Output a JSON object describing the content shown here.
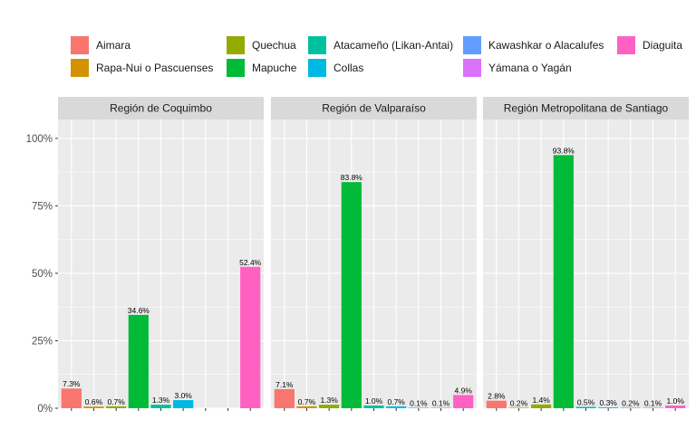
{
  "chart_data": {
    "type": "bar",
    "ylim": [
      0,
      1.07
    ],
    "y_ticks": [
      {
        "value": 0,
        "label": "0%"
      },
      {
        "value": 0.25,
        "label": "25%"
      },
      {
        "value": 0.5,
        "label": "50%"
      },
      {
        "value": 0.75,
        "label": "75%"
      },
      {
        "value": 1.0,
        "label": "100%"
      }
    ],
    "xlabel": "",
    "ylabel": "",
    "grid": true,
    "legend_position": "top",
    "categories": [
      "Aimara",
      "Rapa-Nui o Pascuenses",
      "Quechua",
      "Mapuche",
      "Atacameño (Likan-Antai)",
      "Collas",
      "Kawashkar o Alacalufes",
      "Yámana o Yagán",
      "Diaguita"
    ],
    "legend": [
      {
        "name": "Aimara",
        "color": "#F8766D"
      },
      {
        "name": "Rapa-Nui o Pascuenses",
        "color": "#D39200"
      },
      {
        "name": "Quechua",
        "color": "#93AA00"
      },
      {
        "name": "Mapuche",
        "color": "#00BA38"
      },
      {
        "name": "Atacameño (Likan-Antai)",
        "color": "#00C19F"
      },
      {
        "name": "Collas",
        "color": "#00B9E3"
      },
      {
        "name": "Kawashkar o Alacalufes",
        "color": "#619CFF"
      },
      {
        "name": "Yámana o Yagán",
        "color": "#DB72FB"
      },
      {
        "name": "Diaguita",
        "color": "#FF61C3"
      }
    ],
    "panels": [
      {
        "title": "Región de Coquimbo",
        "values": [
          0.073,
          0.006,
          0.007,
          0.346,
          0.013,
          0.03,
          null,
          null,
          0.524
        ],
        "labels": [
          "7.3%",
          "0.6%",
          "0.7%",
          "34.6%",
          "1.3%",
          "3.0%",
          null,
          null,
          "52.4%"
        ]
      },
      {
        "title": "Región de Valparaíso",
        "values": [
          0.071,
          0.007,
          0.013,
          0.838,
          0.01,
          0.007,
          0.001,
          0.001,
          0.049
        ],
        "labels": [
          "7.1%",
          "0.7%",
          "1.3%",
          "83.8%",
          "1.0%",
          "0.7%",
          "0.1%",
          "0.1%",
          "4.9%"
        ]
      },
      {
        "title": "Región Metropolitana de Santiago",
        "values": [
          0.028,
          0.002,
          0.014,
          0.938,
          0.005,
          0.003,
          0.002,
          0.001,
          0.01
        ],
        "labels": [
          "2.8%",
          "0.2%",
          "1.4%",
          "93.8%",
          "0.5%",
          "0.3%",
          "0.2%",
          "0.1%",
          "1.0%"
        ]
      }
    ]
  }
}
